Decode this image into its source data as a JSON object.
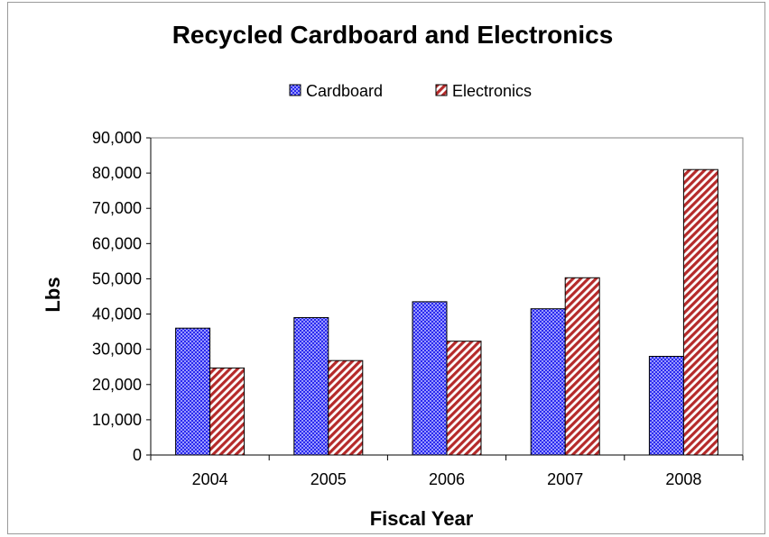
{
  "chart_data": {
    "type": "bar",
    "title": "Recycled Cardboard and Electronics",
    "xlabel": "Fiscal Year",
    "ylabel": "Lbs",
    "categories": [
      "2004",
      "2005",
      "2006",
      "2007",
      "2008"
    ],
    "series": [
      {
        "name": "Cardboard",
        "values": [
          36000,
          39000,
          43500,
          41500,
          28000
        ],
        "color": "#2a2aee",
        "pattern": "checker"
      },
      {
        "name": "Electronics",
        "values": [
          24700,
          26800,
          32300,
          50300,
          81000
        ],
        "color": "#b52a2a",
        "pattern": "diagonal-stripes"
      }
    ],
    "ylim": [
      0,
      90000
    ],
    "yticks": [
      "0",
      "10,000",
      "20,000",
      "30,000",
      "40,000",
      "50,000",
      "60,000",
      "70,000",
      "80,000",
      "90,000"
    ],
    "grid": false,
    "legend_position": "top"
  }
}
